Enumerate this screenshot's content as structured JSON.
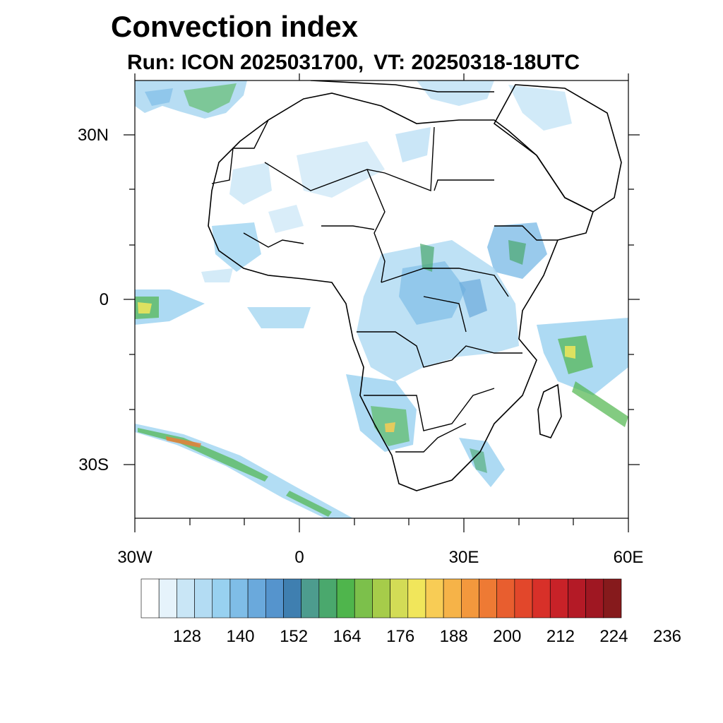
{
  "title": "Convection index",
  "subtitle": {
    "run": "Run: ICON 2025031700,",
    "vt": "VT: 20250318-18UTC"
  },
  "map": {
    "region": "Africa",
    "lon_range": [
      -30,
      60
    ],
    "lat_range": [
      -40,
      40
    ],
    "lat_labels": [
      "30N",
      "0",
      "30S"
    ],
    "lon_labels": [
      "30W",
      "0",
      "30E",
      "60E"
    ]
  },
  "colorbar": {
    "colors": [
      "#ffffff",
      "#e6f3fb",
      "#c9e6f6",
      "#b3dcf3",
      "#98d1f0",
      "#7fbde7",
      "#6aa9dc",
      "#5594cd",
      "#3f7fb0",
      "#4d9c8e",
      "#4aa86d",
      "#4fb54c",
      "#7cc04b",
      "#a6cc4a",
      "#d3dc56",
      "#f1e65b",
      "#f8cc55",
      "#f6b348",
      "#f3983d",
      "#ee7a34",
      "#e85e2f",
      "#e2472b",
      "#d83029",
      "#c82228",
      "#b41a26",
      "#9f1722",
      "#861a1c"
    ],
    "labels": [
      "128",
      "140",
      "152",
      "164",
      "176",
      "188",
      "200",
      "212",
      "224",
      "236"
    ]
  }
}
